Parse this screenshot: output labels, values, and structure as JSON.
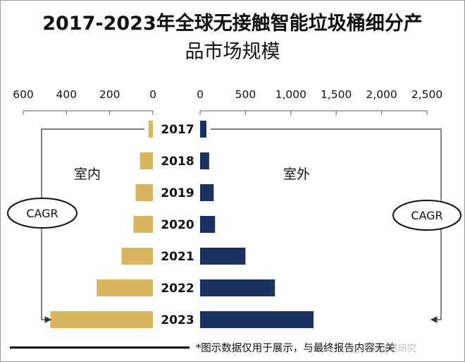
{
  "header": {
    "title_line1": "2017-2023年全球无接触智能垃圾桶细分产",
    "title_line2": "品市场规模"
  },
  "chart_data": {
    "type": "bar",
    "layout": "back-to-back horizontal",
    "categories": [
      "2017",
      "2018",
      "2019",
      "2020",
      "2021",
      "2022",
      "2023"
    ],
    "series": [
      {
        "name": "室内",
        "side": "left",
        "color": "#D9B560",
        "values": [
          20,
          60,
          80,
          90,
          145,
          260,
          475
        ],
        "axis": {
          "min": 0,
          "max": 600,
          "ticks": [
            600,
            400,
            200,
            0
          ]
        }
      },
      {
        "name": "室外",
        "side": "right",
        "color": "#1B3160",
        "values": [
          70,
          100,
          150,
          165,
          500,
          825,
          1250
        ],
        "axis": {
          "min": 0,
          "max": 2500,
          "ticks": [
            0,
            500,
            1000,
            1500,
            2000,
            2500
          ]
        }
      }
    ],
    "tick_labels_left": [
      "600",
      "400",
      "200",
      "0"
    ],
    "tick_labels_right": [
      "0",
      "500",
      "1,000",
      "1,500",
      "2,000",
      "2,500"
    ],
    "annotations": {
      "left_cagr": "CAGR",
      "right_cagr": "CAGR"
    }
  },
  "footer": {
    "note": "*图示数据仅用于展示，与最终报告内容无关",
    "watermark": "@湘财智慧研究"
  }
}
